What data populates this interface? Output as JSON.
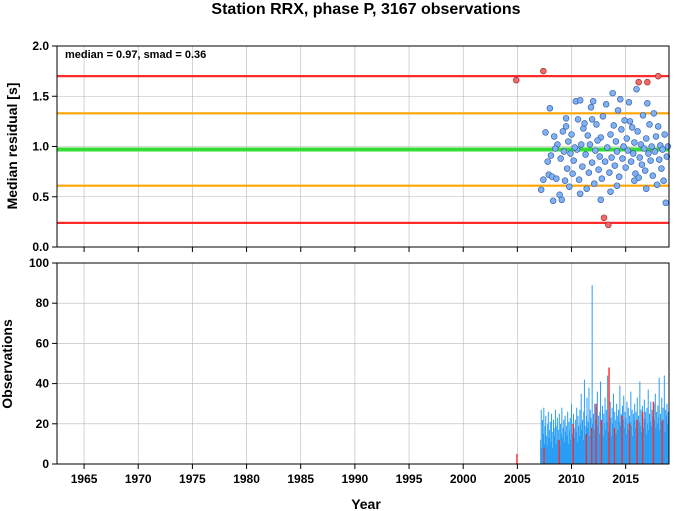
{
  "chart_data": [
    {
      "type": "scatter",
      "title": "Station RRX, phase P, 3167 observations",
      "ylabel": "Median residual [s]",
      "annotation": "median = 0.97, smad = 0.36",
      "xlim": [
        1962.5,
        2019.0
      ],
      "ylim": [
        0.0,
        2.0
      ],
      "yticks": [
        "0.0",
        "0.5",
        "1.0",
        "1.5",
        "2.0"
      ],
      "ytick_values": [
        0.0,
        0.5,
        1.0,
        1.5,
        2.0
      ],
      "grid": true,
      "reference_lines": [
        {
          "y": 1.7,
          "color": "#ff2a2a"
        },
        {
          "y": 1.33,
          "color": "#ffa500"
        },
        {
          "y": 0.97,
          "color": "#33dd33"
        },
        {
          "y": 0.61,
          "color": "#ffa500"
        },
        {
          "y": 0.24,
          "color": "#ff2a2a"
        }
      ],
      "outlier_color": "#f06a6a",
      "inlier_color": "#7fb2f5",
      "outliers": [
        [
          2004.9,
          1.66
        ],
        [
          2007.4,
          1.75
        ],
        [
          2013.0,
          0.29
        ],
        [
          2013.4,
          0.22
        ],
        [
          2016.2,
          1.64
        ],
        [
          2017.0,
          1.64
        ],
        [
          2018.0,
          1.7
        ]
      ],
      "inliers": [
        [
          2007.2,
          0.57
        ],
        [
          2007.4,
          0.67
        ],
        [
          2007.6,
          1.14
        ],
        [
          2007.8,
          0.85
        ],
        [
          2007.9,
          0.72
        ],
        [
          2008.0,
          1.38
        ],
        [
          2008.1,
          0.91
        ],
        [
          2008.2,
          0.7
        ],
        [
          2008.3,
          0.46
        ],
        [
          2008.4,
          1.1
        ],
        [
          2008.6,
          0.68
        ],
        [
          2008.7,
          1.02
        ],
        [
          2008.9,
          0.52
        ],
        [
          2009.0,
          0.88
        ],
        [
          2009.1,
          0.47
        ],
        [
          2009.2,
          1.15
        ],
        [
          2009.3,
          0.95
        ],
        [
          2009.4,
          0.66
        ],
        [
          2009.5,
          1.2
        ],
        [
          2009.6,
          0.78
        ],
        [
          2009.7,
          1.05
        ],
        [
          2009.9,
          0.93
        ],
        [
          2010.0,
          1.12
        ],
        [
          2010.1,
          0.73
        ],
        [
          2010.2,
          0.86
        ],
        [
          2010.4,
          1.45
        ],
        [
          2010.5,
          0.97
        ],
        [
          2010.6,
          1.27
        ],
        [
          2010.7,
          0.67
        ],
        [
          2010.8,
          1.46
        ],
        [
          2010.9,
          1.02
        ],
        [
          2011.0,
          0.8
        ],
        [
          2011.1,
          1.18
        ],
        [
          2011.3,
          0.92
        ],
        [
          2011.4,
          0.58
        ],
        [
          2011.5,
          1.11
        ],
        [
          2011.6,
          0.74
        ],
        [
          2011.7,
          1.02
        ],
        [
          2011.8,
          1.39
        ],
        [
          2011.9,
          0.84
        ],
        [
          2012.0,
          1.45
        ],
        [
          2012.1,
          0.63
        ],
        [
          2012.2,
          0.96
        ],
        [
          2012.3,
          1.22
        ],
        [
          2012.5,
          0.77
        ],
        [
          2012.6,
          0.9
        ],
        [
          2012.7,
          1.09
        ],
        [
          2012.8,
          0.68
        ],
        [
          2012.9,
          1.3
        ],
        [
          2013.1,
          0.85
        ],
        [
          2013.2,
          1.42
        ],
        [
          2013.3,
          0.99
        ],
        [
          2013.5,
          0.74
        ],
        [
          2013.6,
          1.12
        ],
        [
          2013.7,
          0.89
        ],
        [
          2013.8,
          1.53
        ],
        [
          2013.9,
          1.21
        ],
        [
          2014.0,
          0.81
        ],
        [
          2014.1,
          1.05
        ],
        [
          2014.2,
          0.95
        ],
        [
          2014.3,
          1.36
        ],
        [
          2014.4,
          0.7
        ],
        [
          2014.6,
          1.17
        ],
        [
          2014.7,
          0.88
        ],
        [
          2014.8,
          1.0
        ],
        [
          2014.9,
          1.26
        ],
        [
          2015.0,
          0.79
        ],
        [
          2015.1,
          1.08
        ],
        [
          2015.2,
          0.96
        ],
        [
          2015.3,
          1.44
        ],
        [
          2015.5,
          0.85
        ],
        [
          2015.6,
          1.19
        ],
        [
          2015.7,
          0.93
        ],
        [
          2015.8,
          1.04
        ],
        [
          2015.9,
          0.73
        ],
        [
          2016.0,
          1.57
        ],
        [
          2016.1,
          1.15
        ],
        [
          2016.3,
          0.89
        ],
        [
          2016.4,
          1.02
        ],
        [
          2016.5,
          0.82
        ],
        [
          2016.6,
          1.31
        ],
        [
          2016.7,
          0.98
        ],
        [
          2016.8,
          0.76
        ],
        [
          2016.9,
          1.08
        ],
        [
          2017.1,
          0.93
        ],
        [
          2017.2,
          1.22
        ],
        [
          2017.3,
          0.86
        ],
        [
          2017.4,
          1.0
        ],
        [
          2017.5,
          0.71
        ],
        [
          2017.6,
          1.33
        ],
        [
          2017.7,
          0.95
        ],
        [
          2017.8,
          1.1
        ],
        [
          2017.9,
          0.62
        ],
        [
          2018.1,
          0.87
        ],
        [
          2018.2,
          1.01
        ],
        [
          2018.3,
          0.78
        ],
        [
          2018.4,
          0.97
        ],
        [
          2018.5,
          0.66
        ],
        [
          2018.6,
          1.12
        ],
        [
          2018.7,
          0.44
        ],
        [
          2018.8,
          0.9
        ],
        [
          2018.9,
          1.0
        ],
        [
          2011.2,
          1.23
        ],
        [
          2012.4,
          1.06
        ],
        [
          2013.6,
          0.55
        ],
        [
          2014.5,
          1.47
        ],
        [
          2015.4,
          1.25
        ],
        [
          2016.2,
          0.69
        ],
        [
          2017.0,
          1.43
        ],
        [
          2009.8,
          0.6
        ],
        [
          2010.3,
          0.99
        ],
        [
          2011.9,
          1.27
        ],
        [
          2012.7,
          0.47
        ],
        [
          2014.2,
          0.61
        ],
        [
          2015.8,
          0.66
        ],
        [
          2016.9,
          0.58
        ],
        [
          2018.0,
          1.2
        ],
        [
          2008.5,
          0.98
        ],
        [
          2009.5,
          1.28
        ],
        [
          2010.8,
          0.53
        ]
      ]
    },
    {
      "type": "bar",
      "ylabel": "Observations",
      "xlabel": "Year",
      "xlim": [
        1962.5,
        2019.0
      ],
      "ylim": [
        0,
        100
      ],
      "xticks": [
        "1965",
        "1970",
        "1975",
        "1980",
        "1985",
        "1990",
        "1995",
        "2000",
        "2005",
        "2010",
        "2015"
      ],
      "xtick_values": [
        1965,
        1970,
        1975,
        1980,
        1985,
        1990,
        1995,
        2000,
        2005,
        2010,
        2015
      ],
      "yticks": [
        "0",
        "20",
        "40",
        "60",
        "80",
        "100"
      ],
      "ytick_values": [
        0,
        20,
        40,
        60,
        80,
        100
      ],
      "grid": true,
      "bar_color": "#2a9df4",
      "highlight_color": "#ff2a2a",
      "bar_range": [
        2007.1,
        2019.0
      ],
      "bar_values": [
        12,
        27,
        8,
        22,
        15,
        28,
        10,
        19,
        24,
        14,
        9,
        20,
        26,
        13,
        17,
        21,
        11,
        25,
        16,
        8,
        22,
        18,
        14,
        27,
        10,
        19,
        23,
        12,
        17,
        25,
        9,
        20,
        15,
        28,
        13,
        18,
        22,
        11,
        24,
        16,
        19,
        14,
        26,
        10,
        21,
        17,
        23,
        12,
        30,
        15,
        20,
        25,
        13,
        18,
        22,
        16,
        28,
        11,
        24,
        19,
        14,
        27,
        20,
        35,
        17,
        22,
        12,
        26,
        42,
        19,
        15,
        24,
        33,
        18,
        21,
        38,
        14,
        27,
        23,
        16,
        89,
        20,
        25,
        17,
        30,
        22,
        13,
        28,
        36,
        19,
        24,
        15,
        26,
        41,
        18,
        22,
        29,
        14,
        25,
        20,
        33,
        17,
        27,
        21,
        44,
        16,
        24,
        19,
        31,
        23,
        14,
        28,
        20,
        35,
        18,
        26,
        22,
        15,
        30,
        24,
        17,
        27,
        21,
        39,
        19,
        25,
        16,
        29,
        22,
        34,
        18,
        26,
        23,
        15,
        31,
        20,
        28,
        17,
        24,
        21,
        36,
        19,
        27,
        14,
        25,
        22,
        30,
        18,
        26,
        20,
        33,
        17,
        24,
        21,
        41,
        19,
        27,
        16,
        29,
        23,
        18,
        32,
        22,
        26,
        15,
        28,
        20,
        37,
        17,
        25,
        21,
        31,
        19,
        27,
        24,
        16,
        30,
        22,
        35,
        18,
        26,
        20,
        29,
        23,
        43,
        17,
        25,
        21,
        33,
        19,
        28,
        22,
        44,
        16,
        27,
        24,
        30,
        20,
        26,
        18
      ],
      "red_bars": [
        [
          2004.9,
          5
        ],
        [
          2007.4,
          8
        ],
        [
          2008.8,
          12
        ],
        [
          2010.1,
          20
        ],
        [
          2011.3,
          15
        ],
        [
          2012.7,
          22
        ],
        [
          2013.4,
          48
        ],
        [
          2013.9,
          18
        ],
        [
          2014.6,
          24
        ],
        [
          2015.3,
          20
        ],
        [
          2016.0,
          22
        ],
        [
          2016.5,
          26
        ],
        [
          2017.5,
          31
        ],
        [
          2018.3,
          22
        ],
        [
          2011.8,
          18
        ],
        [
          2012.2,
          30
        ]
      ]
    }
  ]
}
